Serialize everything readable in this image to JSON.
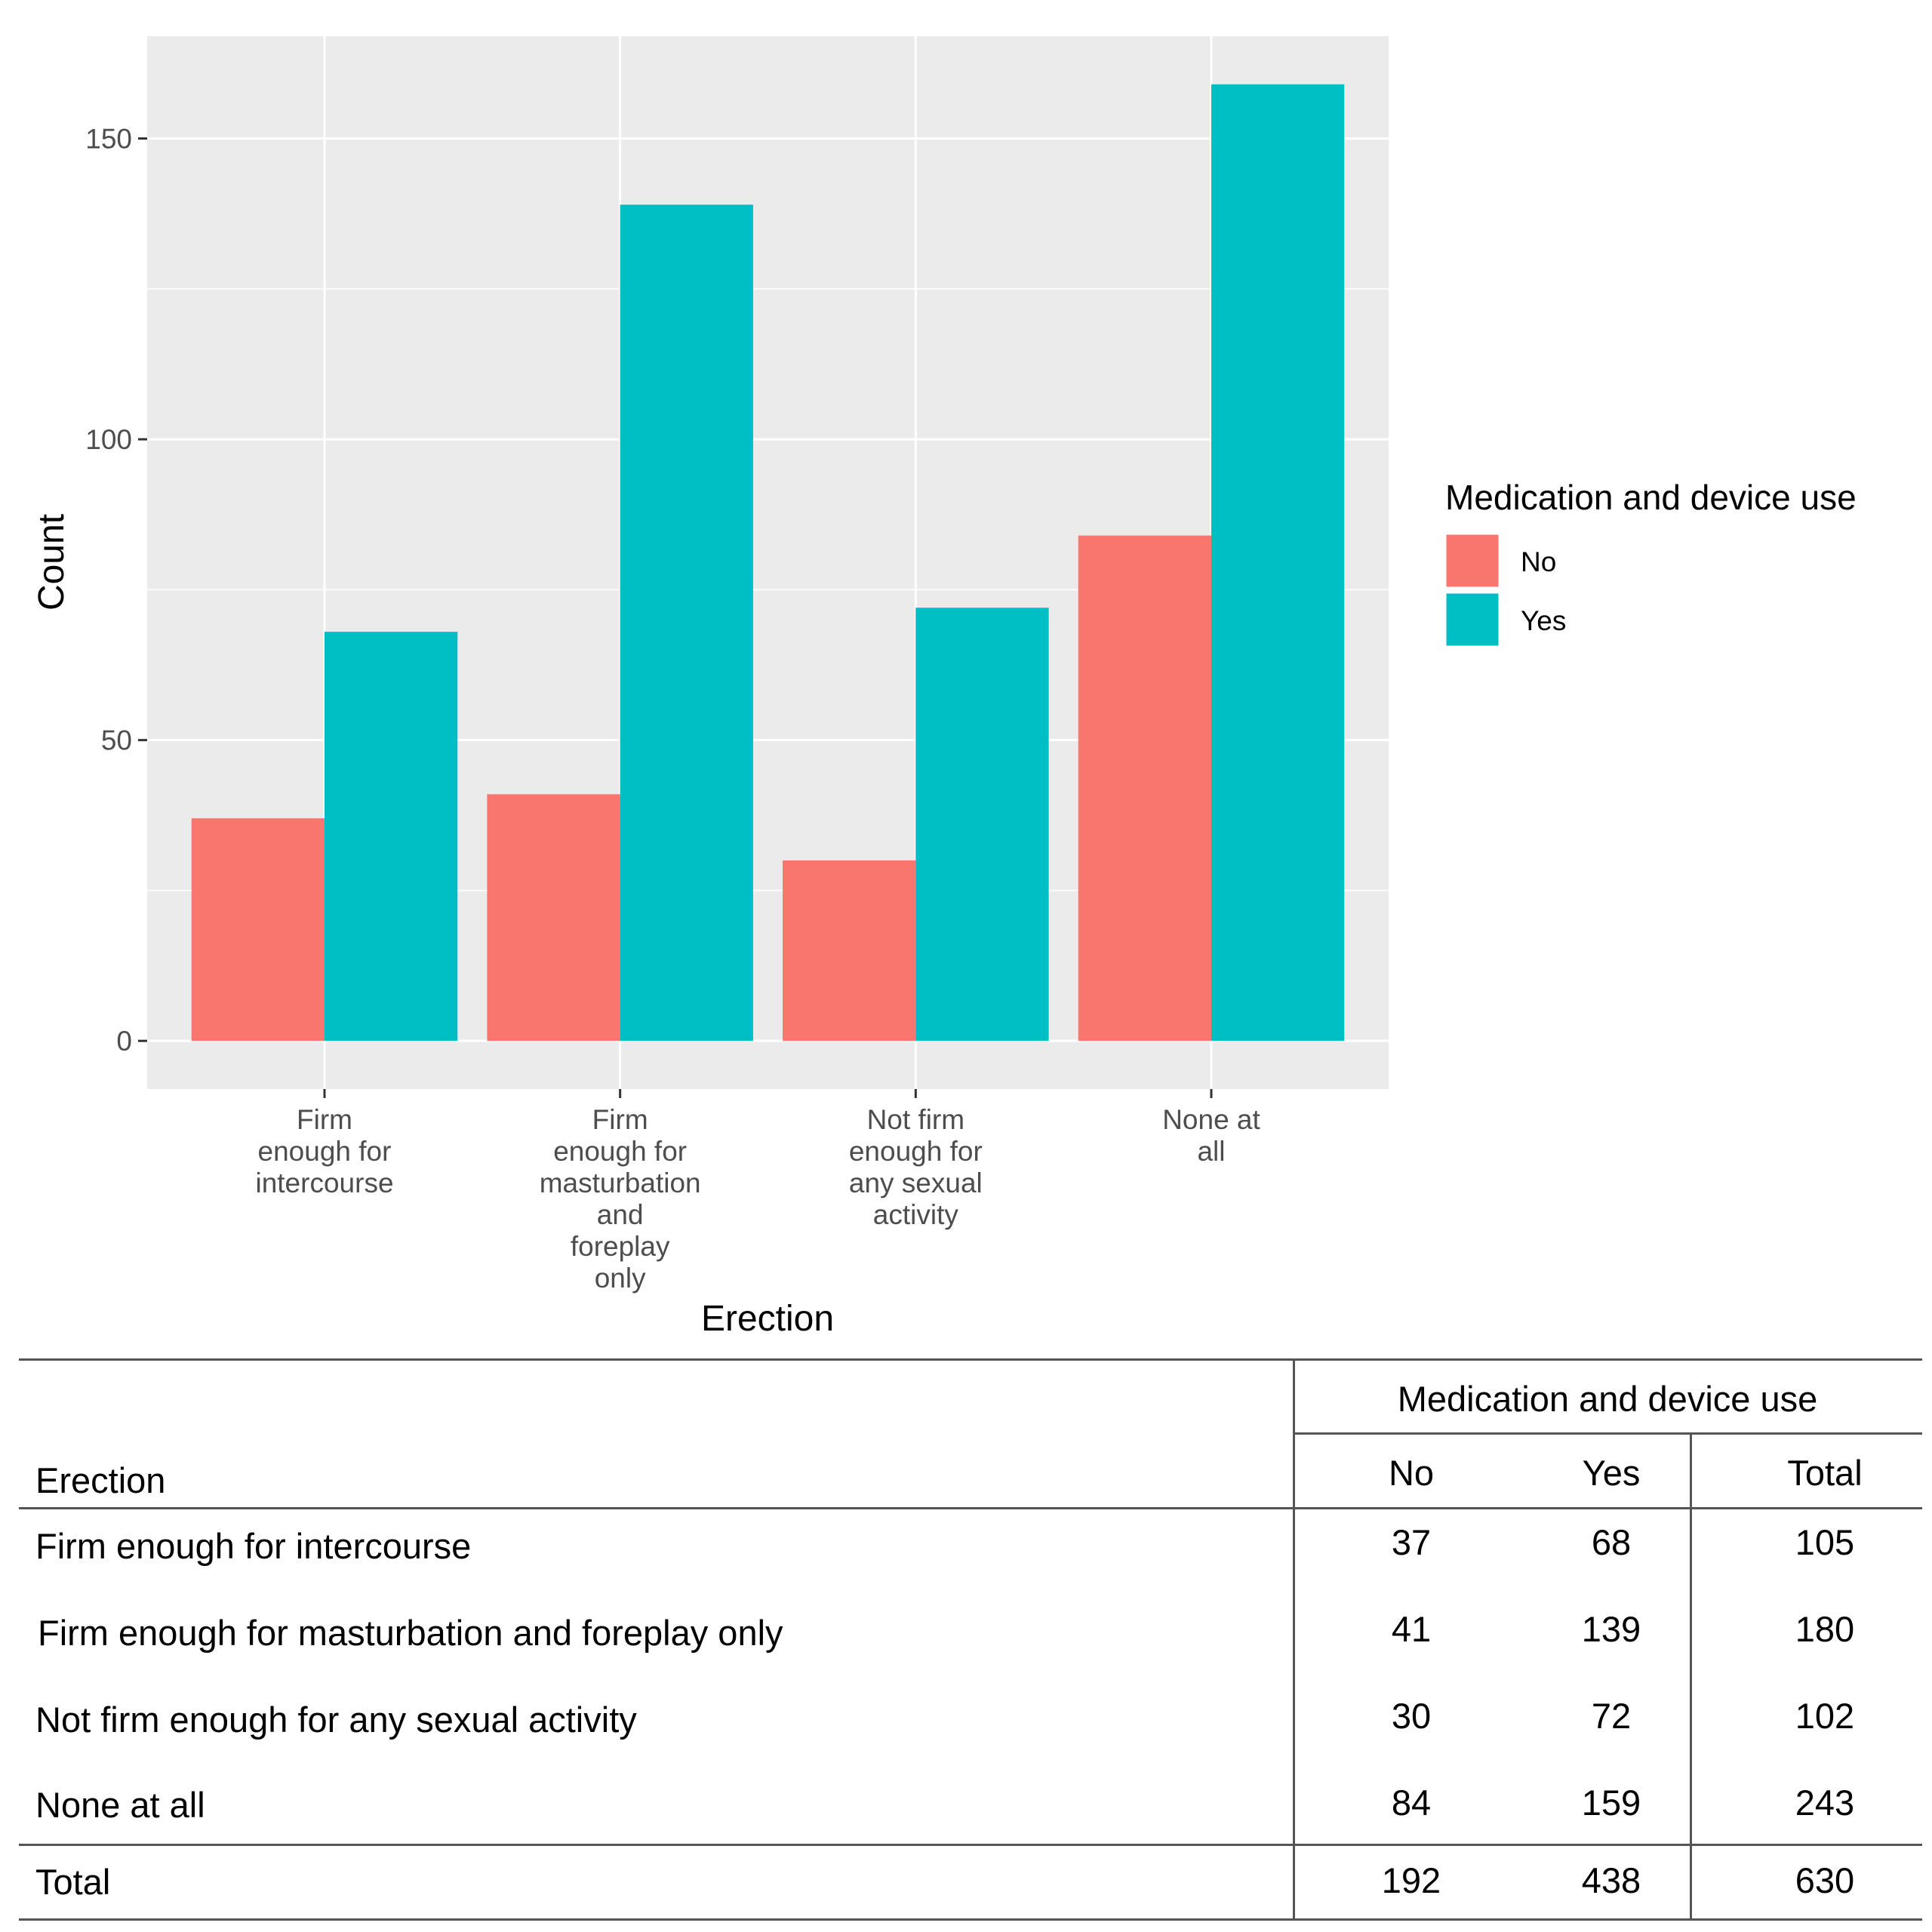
{
  "chart_data": {
    "type": "bar",
    "xlabel": "Erection",
    "ylabel": "Count",
    "ylim": [
      -8,
      167
    ],
    "yticks": [
      0,
      50,
      100,
      150
    ],
    "categories": [
      [
        "Firm",
        "enough for",
        "intercourse"
      ],
      [
        "Firm",
        "enough for",
        "masturbation",
        "and",
        "foreplay",
        "only"
      ],
      [
        "Not firm",
        "enough for",
        "any sexual",
        "activity"
      ],
      [
        "None at",
        "all"
      ]
    ],
    "series": [
      {
        "name": "No",
        "color": "#F8766D",
        "values": [
          37,
          41,
          30,
          84
        ]
      },
      {
        "name": "Yes",
        "color": "#00BFC4",
        "values": [
          68,
          139,
          72,
          159
        ]
      }
    ],
    "legend": {
      "title": "Medication and device use",
      "placement": "right"
    },
    "grid": true,
    "panel_background": "#EBEBEB"
  },
  "table": {
    "group_header": "Medication and device use",
    "row_header": "Erection",
    "col_headers": [
      "No",
      "Yes",
      "Total"
    ],
    "rows": [
      {
        "label": "Firm enough for intercourse",
        "values": [
          "37",
          "68",
          "105"
        ]
      },
      {
        "label": "Firm enough for masturbation and foreplay only",
        "values": [
          "41",
          "139",
          "180"
        ]
      },
      {
        "label": "Not firm enough for any sexual activity",
        "values": [
          "30",
          "72",
          "102"
        ]
      },
      {
        "label": "None at all",
        "values": [
          "84",
          "159",
          "243"
        ]
      }
    ],
    "total": {
      "label": "Total",
      "values": [
        "192",
        "438",
        "630"
      ]
    }
  }
}
